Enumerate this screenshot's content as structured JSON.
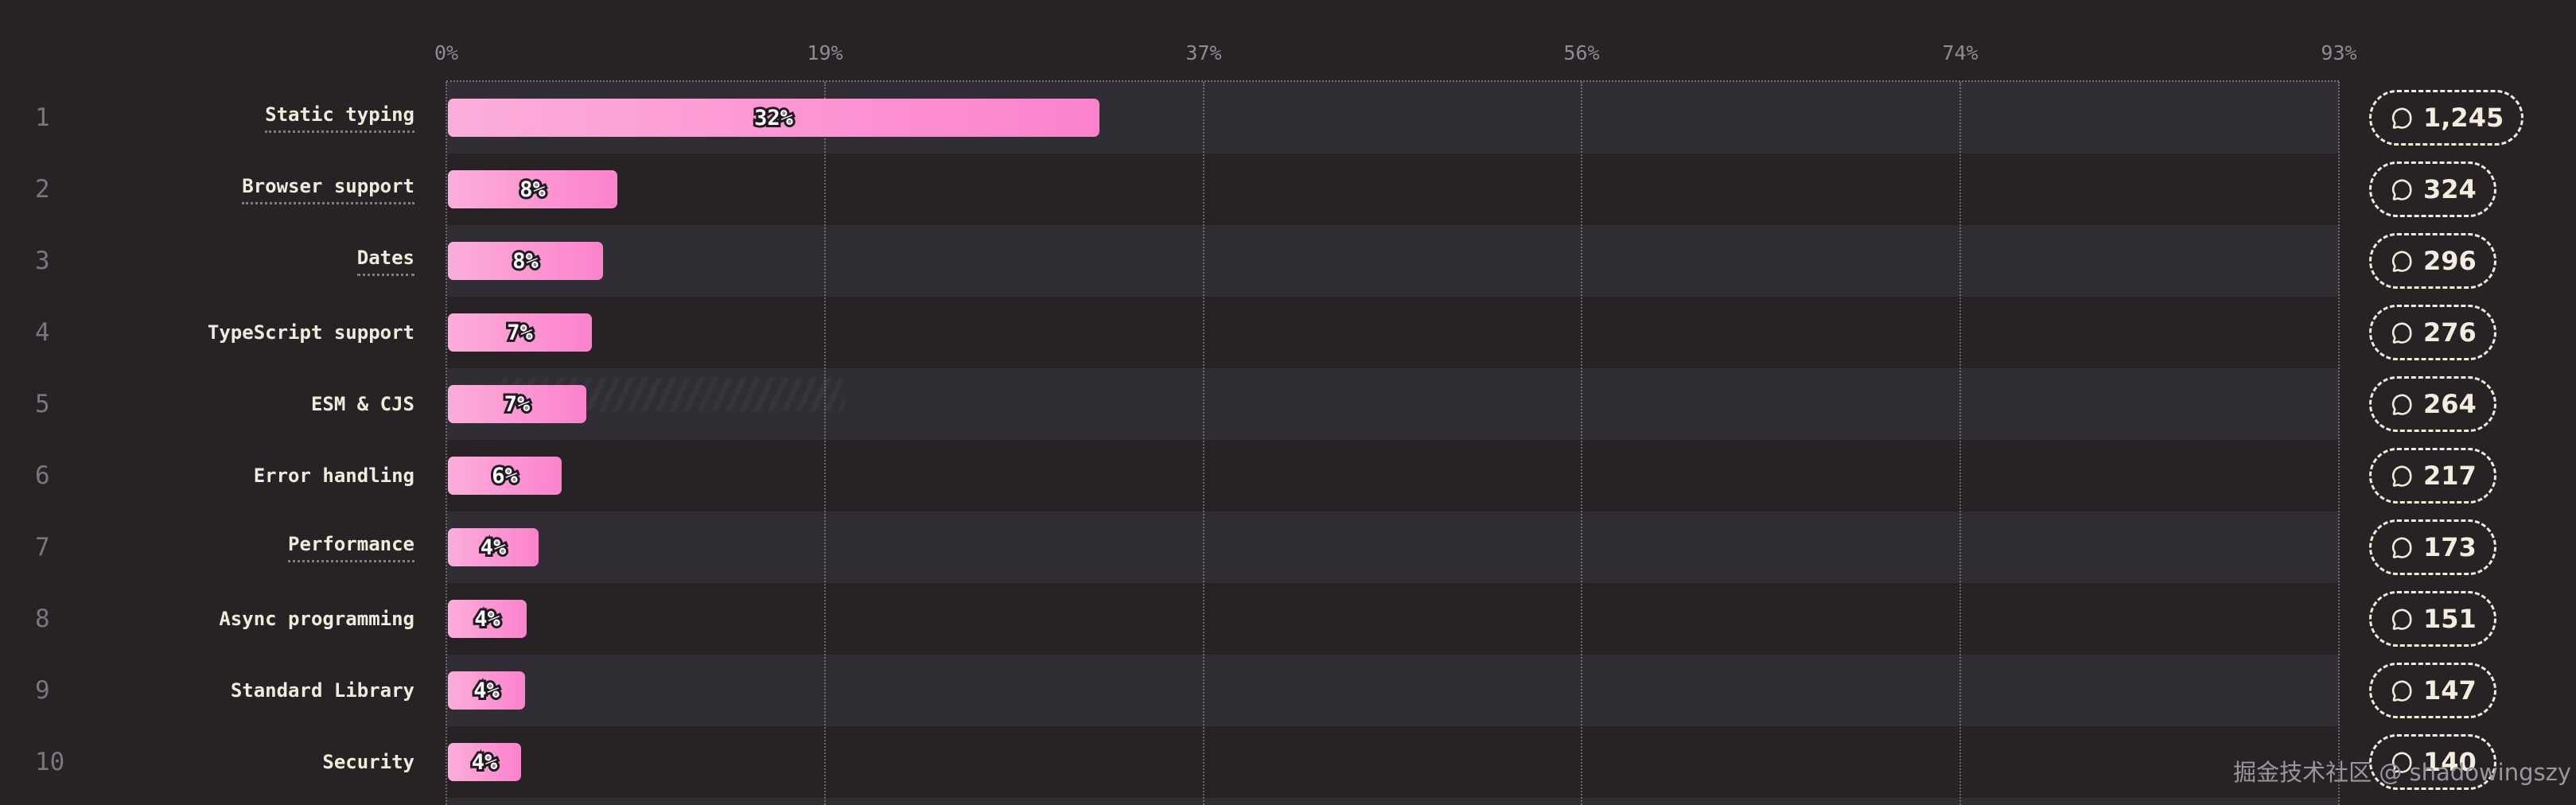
{
  "watermark": "掘金技术社区 @ shadowingszy",
  "colors": {
    "background": "#272324",
    "row_band": "#312d34",
    "bar_gradient_start": "#fcaeda",
    "bar_gradient_end": "#fc82cc",
    "category_text": "#f1ebdd",
    "rank_text": "#7a7580",
    "axis_text": "#8f8a96",
    "badge_border": "#f2ebdc",
    "badge_text": "#f3ecdf",
    "percent_fill": "#ffffff",
    "percent_outline": "#1f1b20",
    "watermark_text": "#9a95a0"
  },
  "chart_data": {
    "type": "bar",
    "orientation": "horizontal",
    "title": "",
    "grid": "vertical-dotted",
    "legend": null,
    "ranks": [
      "1",
      "2",
      "3",
      "4",
      "5",
      "6",
      "7",
      "8",
      "9",
      "10"
    ],
    "categories": [
      "Static typing",
      "Browser support",
      "Dates",
      "TypeScript support",
      "ESM & CJS",
      "Error handling",
      "Performance",
      "Async programming",
      "Standard Library",
      "Security"
    ],
    "values_percent": [
      32,
      8,
      8,
      7,
      7,
      6,
      4,
      4,
      4,
      4
    ],
    "percent_labels": [
      "32%",
      "8%",
      "8%",
      "7%",
      "7%",
      "6%",
      "4%",
      "4%",
      "4%",
      "4%"
    ],
    "comment_counts": [
      1245,
      324,
      296,
      276,
      264,
      217,
      173,
      151,
      147,
      140
    ],
    "comment_count_labels": [
      "1,245",
      "324",
      "296",
      "276",
      "264",
      "217",
      "173",
      "151",
      "147",
      "140"
    ],
    "underlined_categories": [
      "Static typing",
      "Browser support",
      "Dates",
      "Performance"
    ],
    "x_axis_ticks": [
      "0%",
      "19%",
      "37%",
      "56%",
      "74%",
      "93%"
    ],
    "x_axis_max_percent": 93,
    "x_axis_range": [
      0,
      93
    ]
  }
}
